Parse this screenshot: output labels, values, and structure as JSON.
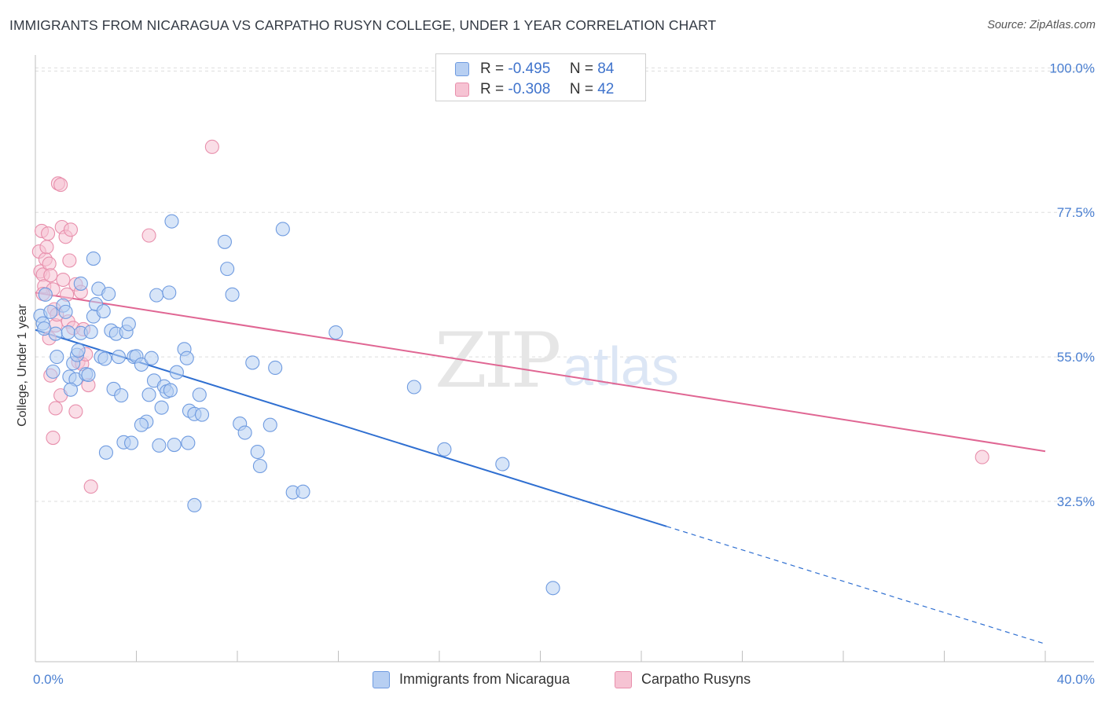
{
  "title": "IMMIGRANTS FROM NICARAGUA VS CARPATHO RUSYN COLLEGE, UNDER 1 YEAR CORRELATION CHART",
  "source": "Source: ZipAtlas.com",
  "watermark": {
    "zip": "ZIP",
    "atlas": "atlas"
  },
  "legend": {
    "row1": {
      "r_label": "R =",
      "r_value": "-0.495",
      "n_label": "N =",
      "n_value": "84"
    },
    "row2": {
      "r_label": "R =",
      "r_value": "-0.308",
      "n_label": "N =",
      "n_value": "42"
    }
  },
  "colors": {
    "blue_fill": "#b7cff2",
    "blue_stroke": "#6f9be0",
    "blue_line": "#2f6fd1",
    "pink_fill": "#f6c3d3",
    "pink_stroke": "#e88fac",
    "pink_line": "#e06693",
    "tick_text": "#4a7fd1",
    "grid": "#dddddd"
  },
  "chart_data": {
    "type": "scatter",
    "title": "IMMIGRANTS FROM NICARAGUA VS CARPATHO RUSYN COLLEGE, UNDER 1 YEAR CORRELATION CHART",
    "xlabel": "",
    "ylabel": "College, Under 1 year",
    "xlim": [
      0,
      40
    ],
    "ylim": [
      9,
      102
    ],
    "x_tick_labels": [
      "0.0%",
      "40.0%"
    ],
    "y_ticks": [
      32.5,
      55.0,
      77.5,
      100.0
    ],
    "y_tick_labels": [
      "32.5%",
      "55.0%",
      "77.5%",
      "100.0%"
    ],
    "grid": true,
    "series": [
      {
        "name": "Immigrants from Nicaragua",
        "color": "blue",
        "R": -0.495,
        "N": 84,
        "trend": {
          "x0": 0,
          "y0": 59.2,
          "x1": 25,
          "y1": 28.6,
          "dash_to_x": 40,
          "dash_to_y": 10.3
        },
        "points": [
          [
            0.2,
            61.4
          ],
          [
            0.3,
            60.2
          ],
          [
            0.35,
            59.4
          ],
          [
            0.4,
            64.7
          ],
          [
            0.6,
            62.0
          ],
          [
            0.7,
            52.7
          ],
          [
            0.8,
            58.6
          ],
          [
            0.85,
            55.0
          ],
          [
            1.1,
            63.0
          ],
          [
            1.2,
            62.0
          ],
          [
            1.3,
            58.8
          ],
          [
            1.35,
            51.9
          ],
          [
            1.5,
            54.0
          ],
          [
            1.6,
            51.5
          ],
          [
            1.65,
            55.3
          ],
          [
            1.7,
            56.0
          ],
          [
            1.8,
            58.7
          ],
          [
            1.8,
            66.4
          ],
          [
            2.0,
            52.3
          ],
          [
            2.1,
            52.2
          ],
          [
            2.2,
            58.9
          ],
          [
            2.3,
            61.3
          ],
          [
            2.3,
            70.3
          ],
          [
            2.4,
            63.2
          ],
          [
            2.5,
            65.6
          ],
          [
            2.6,
            55.0
          ],
          [
            2.7,
            62.1
          ],
          [
            2.75,
            54.7
          ],
          [
            2.8,
            40.1
          ],
          [
            2.9,
            64.8
          ],
          [
            3.0,
            59.1
          ],
          [
            3.1,
            50.0
          ],
          [
            3.2,
            58.6
          ],
          [
            3.3,
            55.0
          ],
          [
            3.4,
            49.0
          ],
          [
            3.5,
            41.7
          ],
          [
            3.6,
            58.9
          ],
          [
            3.7,
            60.1
          ],
          [
            3.8,
            41.6
          ],
          [
            3.9,
            55.0
          ],
          [
            4.0,
            55.1
          ],
          [
            4.2,
            53.8
          ],
          [
            4.4,
            44.9
          ],
          [
            4.5,
            49.1
          ],
          [
            4.6,
            54.8
          ],
          [
            4.7,
            51.3
          ],
          [
            4.8,
            64.6
          ],
          [
            4.9,
            41.2
          ],
          [
            5.0,
            47.1
          ],
          [
            5.1,
            50.4
          ],
          [
            5.2,
            49.6
          ],
          [
            5.3,
            65.0
          ],
          [
            5.35,
            49.8
          ],
          [
            5.4,
            76.1
          ],
          [
            5.5,
            41.3
          ],
          [
            5.6,
            52.6
          ],
          [
            5.9,
            56.2
          ],
          [
            6.0,
            54.8
          ],
          [
            6.05,
            41.6
          ],
          [
            6.1,
            46.6
          ],
          [
            6.3,
            46.1
          ],
          [
            6.5,
            49.1
          ],
          [
            6.6,
            46.0
          ],
          [
            7.5,
            72.9
          ],
          [
            7.6,
            68.7
          ],
          [
            7.8,
            64.7
          ],
          [
            8.1,
            44.6
          ],
          [
            8.3,
            43.2
          ],
          [
            8.6,
            54.1
          ],
          [
            8.8,
            40.2
          ],
          [
            8.9,
            38.0
          ],
          [
            9.3,
            44.4
          ],
          [
            9.5,
            53.3
          ],
          [
            9.8,
            74.9
          ],
          [
            10.2,
            33.9
          ],
          [
            10.6,
            34.0
          ],
          [
            11.9,
            58.8
          ],
          [
            15.0,
            50.3
          ],
          [
            16.2,
            40.6
          ],
          [
            18.5,
            38.3
          ],
          [
            20.5,
            19.0
          ],
          [
            6.3,
            31.9
          ],
          [
            4.2,
            44.4
          ],
          [
            1.4,
            49.9
          ]
        ]
      },
      {
        "name": "Carpatho Rusyns",
        "color": "pink",
        "R": -0.308,
        "N": 42,
        "trend": {
          "x0": 0,
          "y0": 65.0,
          "x1": 40,
          "y1": 40.3
        },
        "points": [
          [
            0.15,
            71.4
          ],
          [
            0.2,
            68.3
          ],
          [
            0.25,
            74.6
          ],
          [
            0.3,
            67.8
          ],
          [
            0.35,
            66.0
          ],
          [
            0.4,
            70.2
          ],
          [
            0.45,
            72.1
          ],
          [
            0.5,
            74.2
          ],
          [
            0.55,
            69.5
          ],
          [
            0.6,
            67.7
          ],
          [
            0.7,
            65.5
          ],
          [
            0.75,
            62.4
          ],
          [
            0.8,
            59.9
          ],
          [
            0.85,
            61.6
          ],
          [
            0.9,
            82.0
          ],
          [
            1.0,
            81.8
          ],
          [
            1.05,
            75.2
          ],
          [
            1.1,
            67.0
          ],
          [
            1.2,
            73.7
          ],
          [
            1.25,
            64.7
          ],
          [
            1.3,
            60.5
          ],
          [
            1.35,
            70.0
          ],
          [
            1.4,
            74.8
          ],
          [
            1.5,
            59.5
          ],
          [
            1.6,
            66.3
          ],
          [
            1.7,
            54.2
          ],
          [
            1.8,
            65.1
          ],
          [
            1.85,
            53.9
          ],
          [
            1.9,
            59.3
          ],
          [
            2.0,
            55.4
          ],
          [
            2.1,
            50.6
          ],
          [
            2.2,
            34.8
          ],
          [
            0.6,
            52.1
          ],
          [
            0.8,
            47.0
          ],
          [
            1.0,
            49.0
          ],
          [
            0.7,
            42.4
          ],
          [
            1.6,
            46.5
          ],
          [
            4.5,
            73.9
          ],
          [
            7.0,
            87.7
          ],
          [
            37.5,
            39.4
          ],
          [
            0.3,
            64.8
          ],
          [
            0.55,
            57.9
          ]
        ]
      }
    ]
  },
  "bottom_legend": {
    "item1": "Immigrants from Nicaragua",
    "item2": "Carpatho Rusyns"
  }
}
